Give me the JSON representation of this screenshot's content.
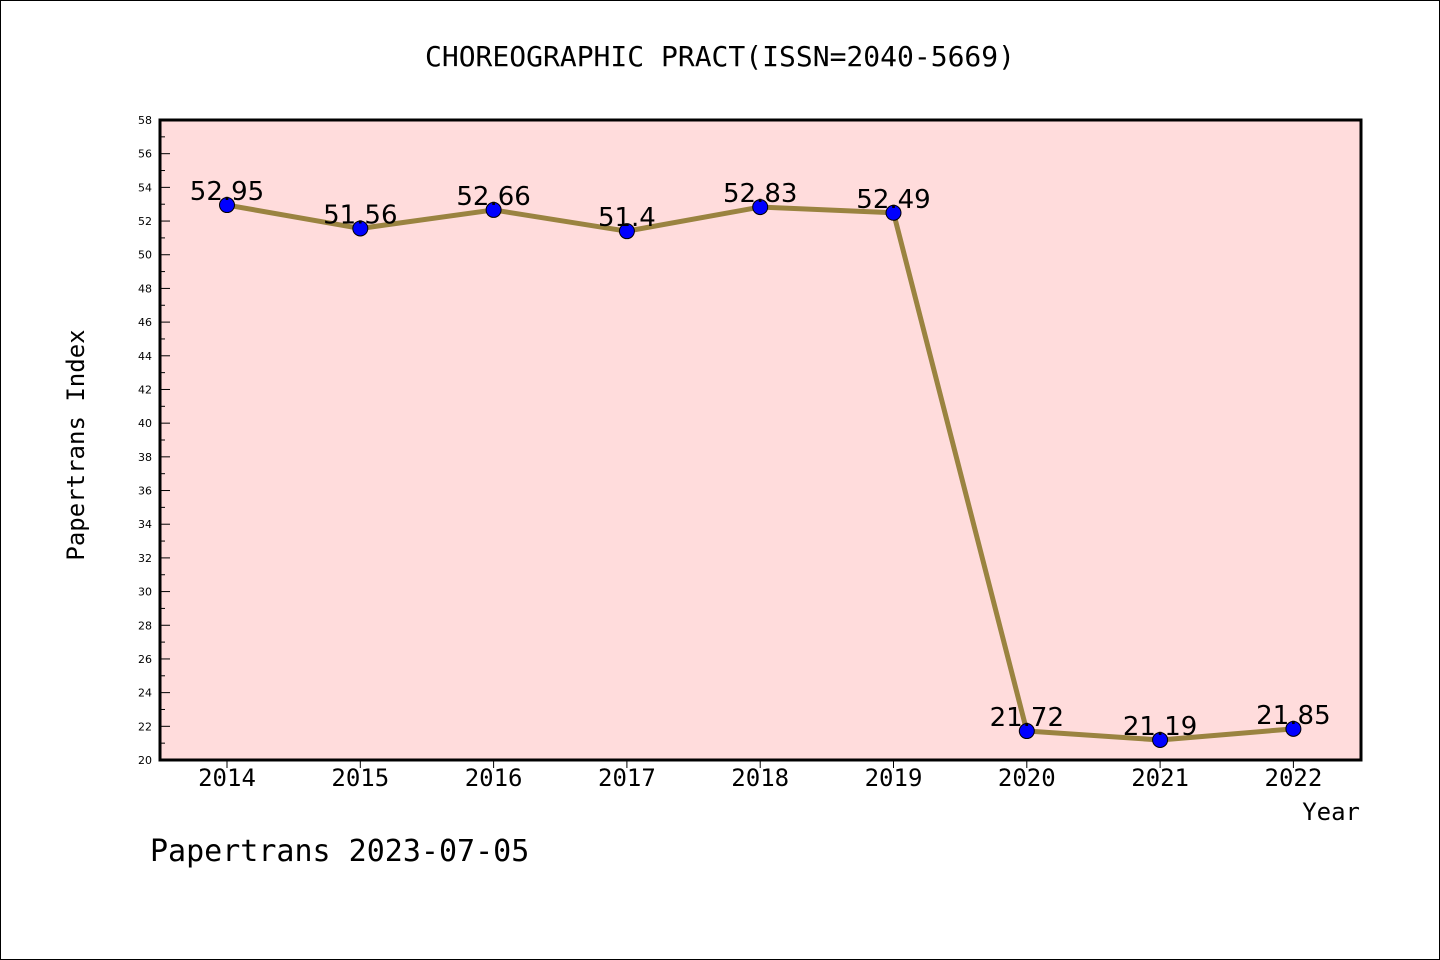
{
  "chart_data": {
    "type": "line",
    "title": "CHOREOGRAPHIC PRACT(ISSN=2040-5669)",
    "xlabel": "Year",
    "ylabel": "Papertrans Index",
    "categories": [
      "2014",
      "2015",
      "2016",
      "2017",
      "2018",
      "2019",
      "2020",
      "2021",
      "2022"
    ],
    "series": [
      {
        "values": [
          52.95,
          51.56,
          52.66,
          51.4,
          52.83,
          52.49,
          21.72,
          21.19,
          21.85
        ]
      }
    ],
    "data_labels": [
      "52.95",
      "51.56",
      "52.66",
      "51.4",
      "52.83",
      "52.49",
      "21.72",
      "21.19",
      "21.85"
    ],
    "ylim": [
      20,
      58
    ],
    "yticks": [
      "20",
      "22",
      "24",
      "26",
      "28",
      "30",
      "32",
      "34",
      "36",
      "38",
      "40",
      "42",
      "44",
      "46",
      "48",
      "50",
      "52",
      "54",
      "56",
      "58"
    ],
    "grid": false,
    "colors": {
      "plot_background": "#ffdcdc",
      "line": "#9a8340",
      "marker": "#0000ff"
    }
  },
  "footer": "Papertrans 2023-07-05"
}
